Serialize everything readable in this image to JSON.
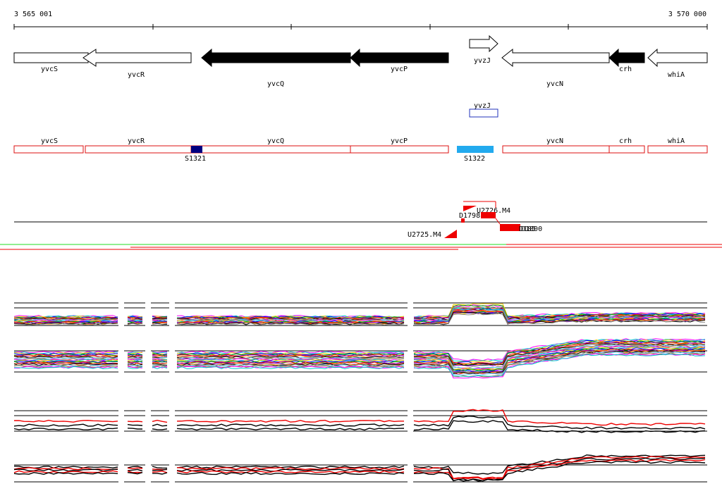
{
  "ruler": {
    "start_label": "3 565 001",
    "end_label": "3 570 000"
  },
  "genes": [
    {
      "name": "yvcS",
      "strand": "-",
      "fill": "#ffffff"
    },
    {
      "name": "yvcR",
      "strand": "-",
      "fill": "#ffffff"
    },
    {
      "name": "yvcQ",
      "strand": "-",
      "fill": "#000000"
    },
    {
      "name": "yvcP",
      "strand": "-",
      "fill": "#000000"
    },
    {
      "name": "yvzJ",
      "strand": "+",
      "fill": "#ffffff"
    },
    {
      "name": "yvcN",
      "strand": "-",
      "fill": "#ffffff"
    },
    {
      "name": "crh",
      "strand": "-",
      "fill": "#000000"
    },
    {
      "name": "whiA",
      "strand": "-",
      "fill": "#ffffff"
    }
  ],
  "small_box": {
    "name": "yvzJ",
    "color": "#2233bb"
  },
  "segments": [
    {
      "name": "yvcS"
    },
    {
      "name": "yvcR"
    },
    {
      "name": "yvcQ"
    },
    {
      "name": "yvcP"
    },
    {
      "name": "yvcN"
    },
    {
      "name": "crh"
    },
    {
      "name": "whiA"
    }
  ],
  "segment_color": "#dd1111",
  "features": [
    {
      "name": "S1321",
      "color": "#000080"
    },
    {
      "name": "S1322",
      "color": "#22aaee"
    }
  ],
  "transcripts": [
    {
      "name": "U2726.M4"
    },
    {
      "name": "D1798"
    },
    {
      "name": "U2725.M4"
    },
    {
      "name": "D185"
    },
    {
      "name": "D1800"
    }
  ],
  "colors": {
    "track_red": "#ee0000",
    "track_green": "#22dd22",
    "profile_palette": [
      "#ff00ff",
      "#00cccc",
      "#ffcc00",
      "#0000ff",
      "#00aa00",
      "#ff0000",
      "#8800cc",
      "#ff8800",
      "#000000",
      "#888888",
      "#66ccff",
      "#aa6633"
    ]
  }
}
